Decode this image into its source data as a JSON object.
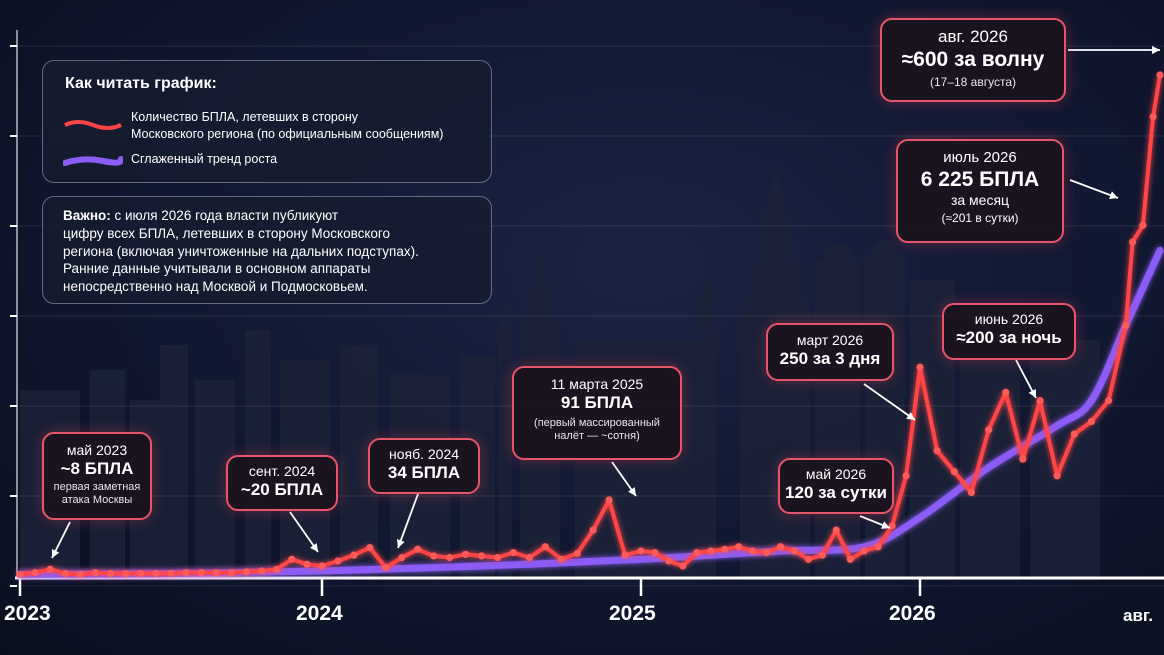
{
  "chart_data": {
    "type": "line",
    "x_ticks": [
      "2023",
      "2024",
      "2025",
      "2026",
      "авг."
    ],
    "series": [
      {
        "name": "Количество БПЛА, летевших в сторону Московского региона (по официальным сообщениям)",
        "color": "#ff4545",
        "x": [
          0.0,
          0.05,
          0.1,
          0.15,
          0.2,
          0.25,
          0.3,
          0.35,
          0.4,
          0.45,
          0.5,
          0.55,
          0.6,
          0.65,
          0.7,
          0.75,
          0.8,
          0.85,
          0.9,
          0.95,
          1.0,
          1.05,
          1.1,
          1.15,
          1.2,
          1.25,
          1.3,
          1.35,
          1.4,
          1.45,
          1.5,
          1.55,
          1.6,
          1.65,
          1.7,
          1.75,
          1.8,
          1.85,
          1.9,
          1.95,
          2.0,
          2.05,
          2.1,
          2.15,
          2.2,
          2.25,
          2.3,
          2.35,
          2.4,
          2.45,
          2.5,
          2.55,
          2.6,
          2.65,
          2.7,
          2.75,
          2.8,
          2.85,
          2.9,
          2.95,
          3.0,
          3.05,
          3.1,
          3.15,
          3.2,
          3.25,
          3.3,
          3.35,
          3.4,
          3.45,
          3.5,
          3.55,
          3.6,
          3.62,
          3.65,
          3.68,
          3.7
        ],
        "values": [
          2,
          4,
          8,
          3,
          2,
          4,
          3,
          3,
          3,
          3,
          3,
          4,
          4,
          4,
          4,
          5,
          6,
          8,
          20,
          14,
          12,
          18,
          25,
          34,
          10,
          22,
          32,
          24,
          22,
          26,
          24,
          22,
          28,
          22,
          35,
          20,
          27,
          55,
          91,
          25,
          30,
          28,
          18,
          12,
          28,
          30,
          32,
          35,
          30,
          28,
          35,
          30,
          20,
          25,
          55,
          20,
          30,
          35,
          60,
          120,
          250,
          150,
          125,
          100,
          175,
          220,
          140,
          210,
          120,
          170,
          185,
          210,
          300,
          400,
          420,
          550,
          600
        ],
        "labels": [
          "май 2023",
          "сент. 2024",
          "нояб. 2024",
          "11 марта 2025",
          "май 2026",
          "март 2026",
          "июнь 2026",
          "июль 2026",
          "авг. 2026"
        ]
      },
      {
        "name": "Сглаженный тренд роста",
        "color": "#8b5cf6",
        "x": [
          0.0,
          0.5,
          1.0,
          1.5,
          2.0,
          2.5,
          2.8,
          3.0,
          3.2,
          3.4,
          3.5,
          3.6,
          3.7
        ],
        "values": [
          2,
          3,
          6,
          12,
          20,
          30,
          35,
          70,
          130,
          180,
          210,
          300,
          390
        ]
      }
    ],
    "annotations": [
      {
        "id": "a1",
        "date": "май 2023",
        "value": "~8 БПЛА",
        "note": "первая заметная атака Москвы"
      },
      {
        "id": "a2",
        "date": "сент. 2024",
        "value": "~20 БПЛА",
        "note": ""
      },
      {
        "id": "a3",
        "date": "нояб. 2024",
        "value": "34 БПЛА",
        "note": ""
      },
      {
        "id": "a4",
        "date": "11 марта 2025",
        "value": "91 БПЛА",
        "note": "(первый массированный налёт — ~сотня)"
      },
      {
        "id": "a5",
        "date": "май 2026",
        "value": "120 за сутки",
        "note": ""
      },
      {
        "id": "a6",
        "date": "март 2026",
        "value": "250 за 3 дня",
        "note": ""
      },
      {
        "id": "a7",
        "date": "июнь 2026",
        "value": "≈200 за ночь",
        "note": ""
      },
      {
        "id": "a8",
        "date": "июль 2026",
        "value": "6 225 БПЛА",
        "value2": "за месяц",
        "note": "(≈201 в сутки)"
      },
      {
        "id": "a9",
        "date": "авг. 2026",
        "value": "≈600 за волну",
        "note": "(17–18 августа)"
      }
    ]
  },
  "legend": {
    "title": "Как читать график:",
    "red_line": "Количество БПЛА, летевших в сторону",
    "red_line2": "Московского региона (по официальным сообщениям)",
    "purple_line": "Сглаженный тренд роста"
  },
  "note": {
    "bold": "Важно:",
    "text1": " с июля 2026 года власти публикуют",
    "text2": "цифру всех БПЛА, летевших в сторону Московского",
    "text3": "региона (включая уничтоженные на дальних подступах).",
    "text4": "Ранние данные учитывали в основном аппараты",
    "text5": "непосредственно над Москвой и Подмосковьем."
  },
  "colors": {
    "red": "#ff4545",
    "purple": "#8b5cf6",
    "bg": "#0b1020"
  }
}
